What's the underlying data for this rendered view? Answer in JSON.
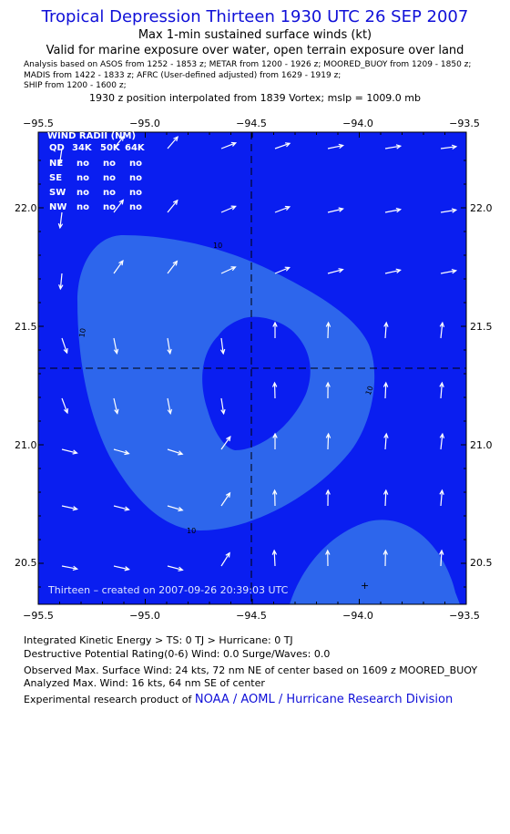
{
  "header": {
    "title": "Tropical Depression Thirteen 1930 UTC 26 SEP 2007",
    "subtitle": "Max 1-min sustained surface winds (kt)",
    "validity": "Valid for marine exposure over water, open terrain exposure over land",
    "sources": [
      "Analysis based on   ASOS from 1252 - 1853 z;   METAR from 1200 - 1926 z;   MOORED_BUOY from 1209 - 1850 z;",
      "MADIS from 1422 - 1833 z;   AFRC (User-defined adjusted) from 1629 - 1919 z;",
      "SHIP from 1200 - 1600 z;"
    ],
    "interpolation": "1930 z position interpolated from 1839 Vortex; mslp = 1009.0 mb"
  },
  "map": {
    "lon_labels": [
      "−95.5",
      "−95.0",
      "−94.5",
      "−94.0",
      "−93.5"
    ],
    "lat_labels": [
      "22.0",
      "21.5",
      "21.0",
      "20.5"
    ],
    "lon_values": [
      -95.5,
      -95.0,
      -94.5,
      -94.0,
      -93.5
    ],
    "lat_values": [
      22.0,
      21.5,
      21.0,
      20.5
    ],
    "lon_range": [
      -95.5,
      -93.5
    ],
    "lat_range": [
      20.3,
      22.35
    ],
    "center": {
      "lon": -94.5,
      "lat": 21.33
    },
    "contour_label": "10",
    "creation_stamp": "Thirteen  –  created on 2007-09-26 20:39:03 UTC",
    "colors": {
      "background": "#0a1ef0",
      "band_10kt": "#2d66ec",
      "text": "#ffffff",
      "dashed": "#000000"
    }
  },
  "wind_radii": {
    "title": "WIND RADII (NM)",
    "columns": [
      "QD",
      "34K",
      "50K",
      "64K"
    ],
    "rows": [
      [
        "NE",
        "no",
        "no",
        "no"
      ],
      [
        "SE",
        "no",
        "no",
        "no"
      ],
      [
        "SW",
        "no",
        "no",
        "no"
      ],
      [
        "NW",
        "no",
        "no",
        "no"
      ]
    ]
  },
  "footer": {
    "ike": "Integrated Kinetic Energy > TS: 0 TJ   > Hurricane: 0 TJ",
    "destructive": "Destructive Potential Rating(0-6)   Wind: 0.0 Surge/Waves: 0.0",
    "observed": "Observed Max. Surface Wind: 24 kts, 72 nm NE of center based on 1609 z MOORED_BUOY",
    "analyzed": "Analyzed Max. Wind: 16 kts, 64 nm SE of center",
    "credit": "Experimental research product of ",
    "credit_link": "NOAA / AOML / Hurricane Research Division"
  }
}
